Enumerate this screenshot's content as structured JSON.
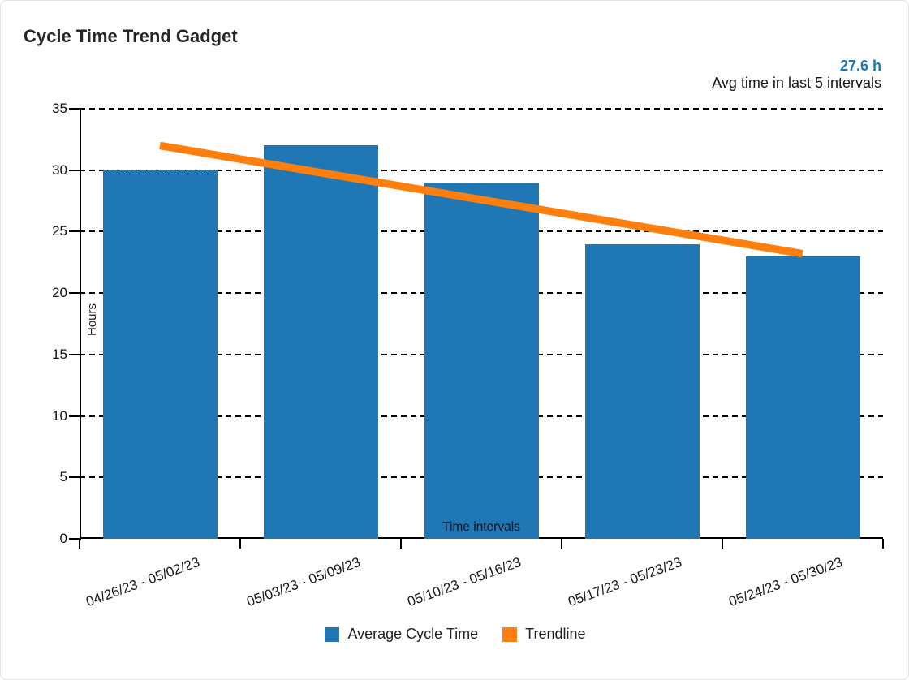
{
  "header": {
    "title": "Cycle Time Trend Gadget"
  },
  "stat": {
    "value": "27.6 h",
    "caption": "Avg time in last 5 intervals",
    "value_color": "#1f77b4"
  },
  "legend": {
    "items": [
      {
        "label": "Average Cycle Time",
        "color": "#1f77b4"
      },
      {
        "label": "Trendline",
        "color": "#ff7f0e"
      }
    ]
  },
  "chart_data": {
    "type": "bar",
    "title": "Cycle Time Trend Gadget",
    "categories": [
      "04/26/23 - 05/02/23",
      "05/03/23 - 05/09/23",
      "05/10/23 - 05/16/23",
      "05/17/23 - 05/23/23",
      "05/24/23 - 05/30/23"
    ],
    "series": [
      {
        "name": "Average Cycle Time",
        "type": "bar",
        "color": "#1f77b4",
        "values": [
          30,
          32,
          29,
          24,
          23
        ]
      },
      {
        "name": "Trendline",
        "type": "line",
        "color": "#ff7f0e",
        "points": [
          {
            "x": 1,
            "y": 32.0
          },
          {
            "x": 5,
            "y": 23.2
          }
        ]
      }
    ],
    "xlabel": "Time intervals",
    "ylabel": "Hours",
    "ylim": [
      0,
      35
    ],
    "yticks": [
      0,
      5,
      10,
      15,
      20,
      25,
      30,
      35
    ],
    "grid": "horizontal dashed",
    "legend_position": "bottom",
    "avg_last_5_intervals_hours": 27.6
  },
  "colors": {
    "bar_blue": "#1f77b4",
    "trend_orange": "#ff7f0e",
    "axis_black": "#000000",
    "card_border": "#e2e2e2"
  }
}
